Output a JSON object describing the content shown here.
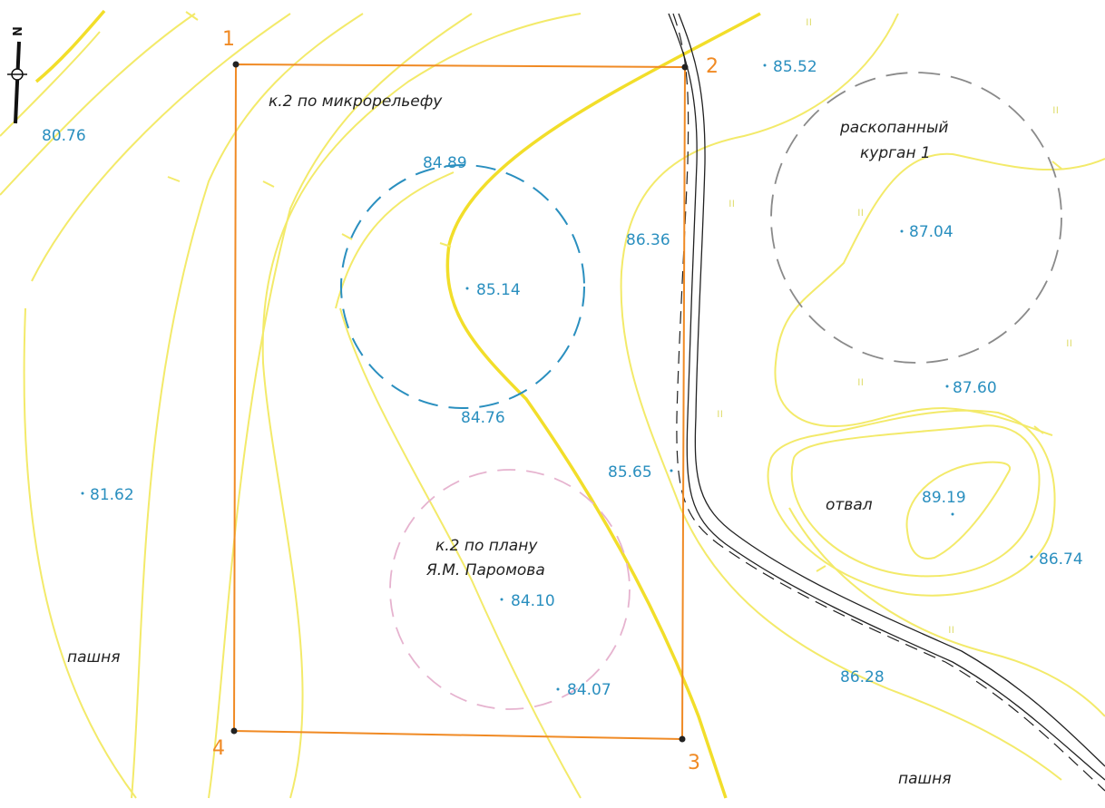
{
  "corners": {
    "c1": "1",
    "c2": "2",
    "c3": "3",
    "c4": "4"
  },
  "labels": {
    "microrelief": "к.2 по микрорельефу",
    "kurgan_line1": "раскопанный",
    "kurgan_line2": "курган 1",
    "plan_line1": "к.2 по плану",
    "plan_line2": "Я.М. Паромова",
    "otval": "отвал",
    "pashnya_left": "пашня",
    "pashnya_right": "пашня"
  },
  "elevations": {
    "e8076": "80.76",
    "e8552": "85.52",
    "e8489": "84.89",
    "e8636": "86.36",
    "e8704": "87.04",
    "e8514": "85.14",
    "e8476": "84.76",
    "e8760": "87.60",
    "e8565": "85.65",
    "e8919": "89.19",
    "e8162": "81.62",
    "e8674": "86.74",
    "e8410": "84.10",
    "e8628": "86.28",
    "e8407": "84.07"
  },
  "north": {
    "letter": "N"
  },
  "colors": {
    "contour": "#f3ea6a",
    "contour_bold": "#f2de2a",
    "boundary": "#f08a24",
    "elevation_text": "#2a8fbf",
    "blue_circle": "#2a8fbf",
    "pink_circle": "#e6b3cf",
    "kurgan_circle": "#8a8a8a",
    "road": "#222222"
  }
}
